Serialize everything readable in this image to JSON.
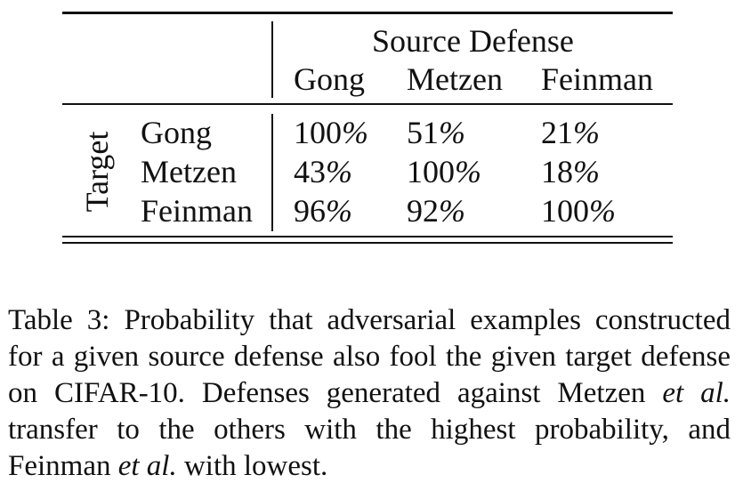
{
  "table": {
    "header_group": "Source Defense",
    "column_headers": [
      "Gong",
      "Metzen",
      "Feinman"
    ],
    "row_group": "Target",
    "rows": [
      {
        "label": "Gong",
        "values": [
          "100",
          "51",
          "21"
        ]
      },
      {
        "label": "Metzen",
        "values": [
          "43",
          "100",
          "18"
        ]
      },
      {
        "label": "Feinman",
        "values": [
          "96",
          "92",
          "100"
        ]
      }
    ],
    "unit": "%"
  },
  "caption": {
    "label": "Table 3:",
    "text_1": " Probability that adversarial examples constructed for a given source defense also fool the given target defense on CIFAR-10. Defenses generated against Metzen ",
    "etal_1": "et al.",
    "text_2": " transfer to the others with the highest probability, and Feinman ",
    "etal_2": "et al.",
    "text_3": " with lowest."
  }
}
